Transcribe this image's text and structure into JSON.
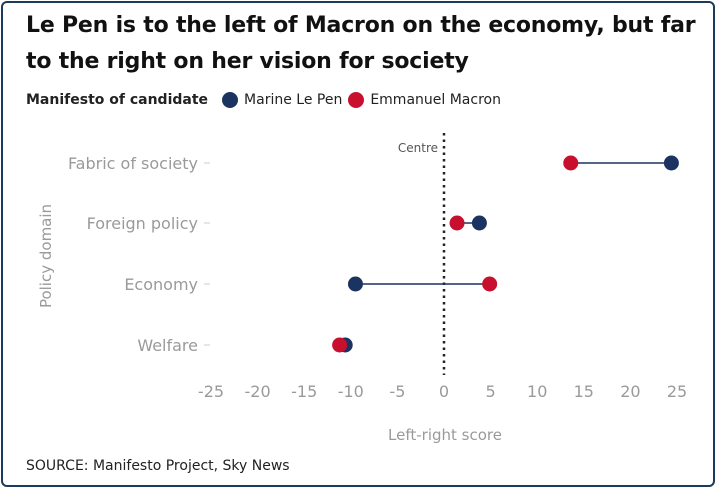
{
  "title": "Le Pen is to the left of Macron on the economy, but far to the right on her vision for society",
  "legend": {
    "title": "Manifesto of candidate",
    "items": [
      {
        "label": "Marine Le Pen",
        "color": "#1b3360"
      },
      {
        "label": "Emmanuel Macron",
        "color": "#c8102e"
      }
    ]
  },
  "source": "SOURCE: Manifesto Project, Sky News",
  "chart_data": {
    "type": "scatter",
    "categories": [
      "Fabric of society",
      "Foreign policy",
      "Economy",
      "Welfare"
    ],
    "series": [
      {
        "name": "Marine Le Pen",
        "color": "#1b3360",
        "values": [
          24.4,
          3.8,
          -9.5,
          -10.6
        ]
      },
      {
        "name": "Emmanuel Macron",
        "color": "#c8102e",
        "values": [
          13.6,
          1.4,
          4.9,
          -11.2
        ]
      }
    ],
    "xlabel": "Left-right score",
    "ylabel": "Policy domain",
    "xlim": [
      -25,
      25
    ],
    "xticks": [
      -25,
      -20,
      -15,
      -10,
      -5,
      0,
      5,
      10,
      15,
      20,
      25
    ],
    "reference_line": {
      "x": 0,
      "label": "Centre"
    },
    "grid": false,
    "legend_position": "top-left"
  }
}
